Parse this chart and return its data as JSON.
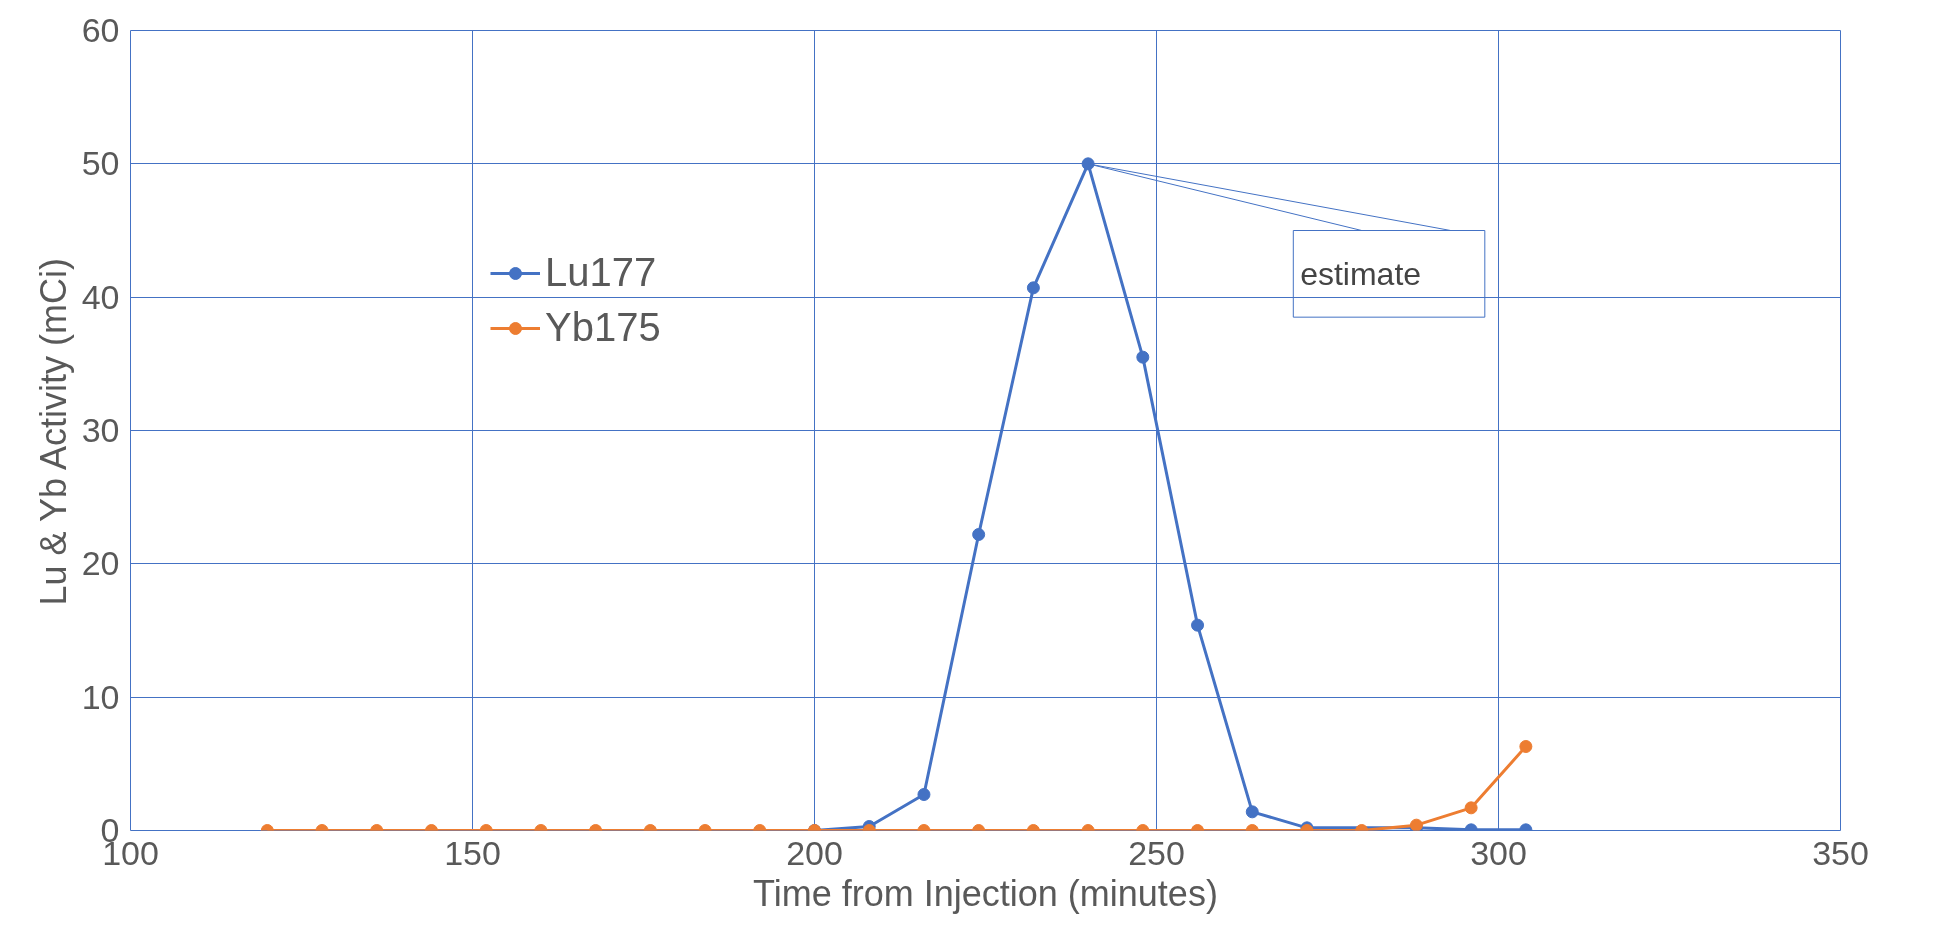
{
  "chart_data": {
    "type": "line",
    "xlabel": "Time from Injection (minutes)",
    "ylabel": "Lu & Yb Activity (mCi)",
    "x": [
      120,
      128,
      136,
      144,
      152,
      160,
      168,
      176,
      184,
      192,
      200,
      208,
      216,
      224,
      232,
      240,
      248,
      256,
      264,
      272,
      280,
      288,
      296,
      304
    ],
    "series": [
      {
        "name": "Lu177",
        "color": "#4472c4",
        "values": [
          null,
          null,
          null,
          null,
          null,
          null,
          null,
          null,
          null,
          null,
          0,
          0.3,
          2.7,
          22.2,
          40.7,
          50,
          35.5,
          15.4,
          1.4,
          0.2,
          null,
          0.2,
          0.05,
          0.05
        ]
      },
      {
        "name": "Yb175",
        "color": "#ed7d31",
        "values": [
          0,
          0,
          0,
          0,
          0,
          0,
          0,
          0,
          0,
          0,
          0,
          0,
          0,
          0,
          0,
          0,
          0,
          0,
          0,
          0,
          0,
          0.4,
          1.7,
          6.3
        ]
      }
    ],
    "xlim": [
      100,
      350
    ],
    "xticks": [
      100,
      150,
      200,
      250,
      300,
      350
    ],
    "ylim": [
      0,
      60
    ],
    "yticks": [
      0,
      10,
      20,
      30,
      40,
      50,
      60
    ],
    "grid": true,
    "legend": "left",
    "marker": "circle",
    "line_style": "solid",
    "annotations": [
      {
        "text": "estimate",
        "x": 240,
        "y": 50
      }
    ]
  }
}
